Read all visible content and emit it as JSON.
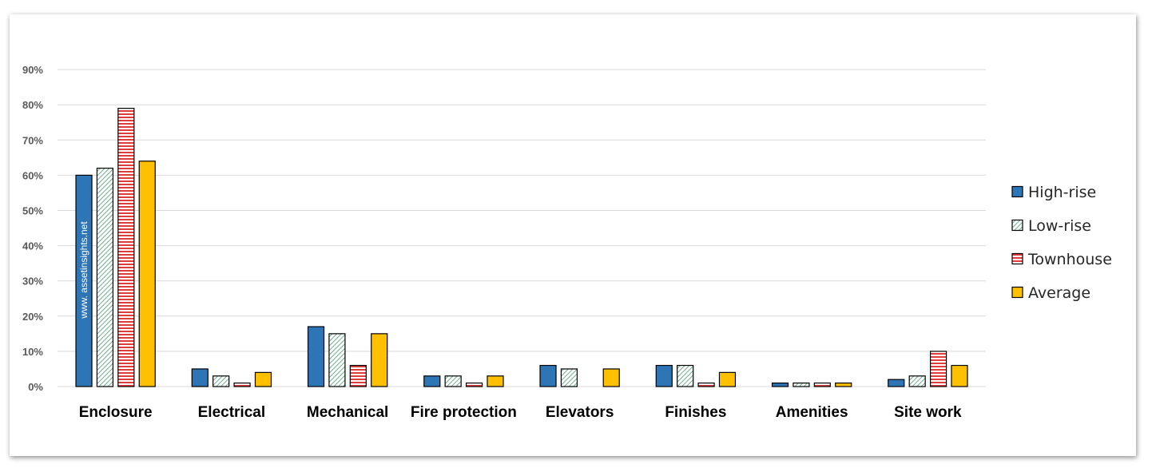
{
  "watermark": "www. assetinsights.net",
  "chart_data": {
    "type": "bar",
    "title": "",
    "xlabel": "",
    "ylabel": "",
    "categories": [
      "Enclosure",
      "Electrical",
      "Mechanical",
      "Fire protection",
      "Elevators",
      "Finishes",
      "Amenities",
      "Site work"
    ],
    "series": [
      {
        "name": "High-rise",
        "color": "#2e75b6",
        "pattern": "solid",
        "values": [
          60,
          5,
          17,
          3,
          6,
          6,
          1,
          2
        ]
      },
      {
        "name": "Low-rise",
        "color": "#70ad8f",
        "pattern": "diagonal",
        "values": [
          62,
          3,
          15,
          3,
          5,
          6,
          1,
          3
        ]
      },
      {
        "name": "Townhouse",
        "color": "#e03c3c",
        "pattern": "horizontal",
        "values": [
          79,
          1,
          6,
          1,
          0,
          1,
          1,
          10
        ]
      },
      {
        "name": "Average",
        "color": "#ffc000",
        "pattern": "solid",
        "values": [
          64,
          4,
          15,
          3,
          5,
          4,
          1,
          6
        ]
      }
    ],
    "ylim": [
      0,
      90
    ],
    "yticks": [
      0,
      10,
      20,
      30,
      40,
      50,
      60,
      70,
      80,
      90
    ],
    "ytick_labels": [
      "0%",
      "10%",
      "20%",
      "30%",
      "40%",
      "50%",
      "60%",
      "70%",
      "80%",
      "90%"
    ],
    "grid": true,
    "legend_position": "right"
  }
}
